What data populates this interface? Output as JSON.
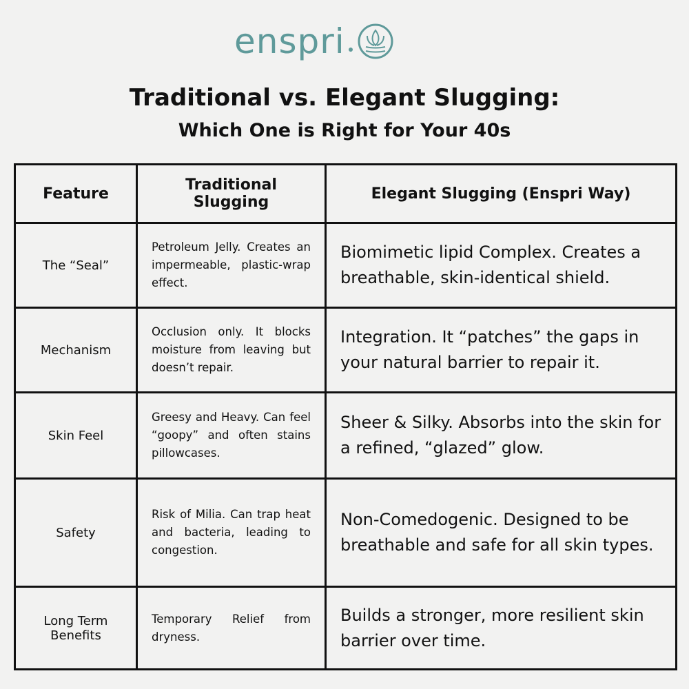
{
  "logo": {
    "text": "enspri"
  },
  "header": {
    "title": "Traditional vs. Elegant Slugging:",
    "subtitle": "Which One is Right for Your 40s"
  },
  "table": {
    "columns": [
      "Feature",
      "Traditional Slugging",
      "Elegant Slugging (Enspri Way)"
    ],
    "rows": [
      [
        "The “Seal”",
        "Petroleum Jelly.  Creates an impermeable, plastic-wrap effect.",
        "Biomimetic lipid Complex.  Creates a breathable, skin-identical shield."
      ],
      [
        "Mechanism",
        "Occlusion only.  It blocks moisture from leaving but doesn’t repair.",
        "Integration.  It “patches” the gaps in your natural barrier to repair it."
      ],
      [
        "Skin Feel",
        "Greesy and Heavy.  Can feel “goopy” and often stains pillowcases.",
        "Sheer & Silky.  Absorbs into the skin for a refined, “glazed” glow."
      ],
      [
        "Safety",
        "Risk of Milia.  Can trap heat and bacteria, leading to congestion.",
        "Non-Comedogenic.  Designed to be breathable and safe for all skin types."
      ],
      [
        "Long Term Benefits",
        "Temporary Relief from dryness.",
        "Builds a stronger, more resilient skin barrier over time."
      ]
    ]
  }
}
